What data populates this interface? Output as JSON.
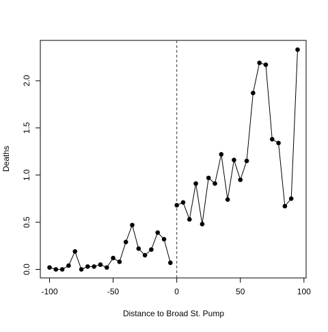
{
  "chart_data": {
    "type": "line",
    "title": "",
    "xlabel": "Distance to Broad St. Pump",
    "ylabel": "Deaths",
    "xlim": [
      -100,
      95
    ],
    "ylim": [
      0,
      2.33
    ],
    "x_ticks": [
      -100,
      -50,
      0,
      50,
      100
    ],
    "x_tick_labels": [
      "-100",
      "-50",
      "0",
      "50",
      "100"
    ],
    "y_ticks": [
      0,
      0.5,
      1.0,
      1.5,
      2.0
    ],
    "y_tick_labels": [
      "0.0",
      "0.5",
      "1.0",
      "1.5",
      "2.0"
    ],
    "vline": {
      "x": 0,
      "style": "dashed"
    },
    "grid": false,
    "legend": "none",
    "series": [
      {
        "segment": "left",
        "x": [
          -100,
          -95,
          -90,
          -85,
          -80,
          -75,
          -70,
          -65,
          -60,
          -55,
          -50,
          -45,
          -40,
          -35,
          -30,
          -25,
          -20,
          -15,
          -10,
          -5
        ],
        "y": [
          0.02,
          0.0,
          0.0,
          0.04,
          0.19,
          0.0,
          0.03,
          0.03,
          0.05,
          0.02,
          0.12,
          0.08,
          0.29,
          0.47,
          0.22,
          0.15,
          0.21,
          0.39,
          0.32,
          0.07
        ]
      },
      {
        "segment": "right",
        "x": [
          0,
          5,
          10,
          15,
          20,
          25,
          30,
          35,
          40,
          45,
          50,
          55,
          60,
          65,
          70,
          75,
          80,
          85,
          90,
          95
        ],
        "y": [
          0.68,
          0.71,
          0.53,
          0.91,
          0.48,
          0.97,
          0.91,
          1.22,
          0.74,
          1.16,
          0.95,
          1.15,
          1.87,
          2.19,
          2.17,
          1.38,
          1.34,
          0.67,
          0.75,
          2.33
        ]
      }
    ],
    "colors": {
      "points": "#000000",
      "lines": "#000000",
      "axes": "#000000",
      "vline": "#555555"
    }
  }
}
